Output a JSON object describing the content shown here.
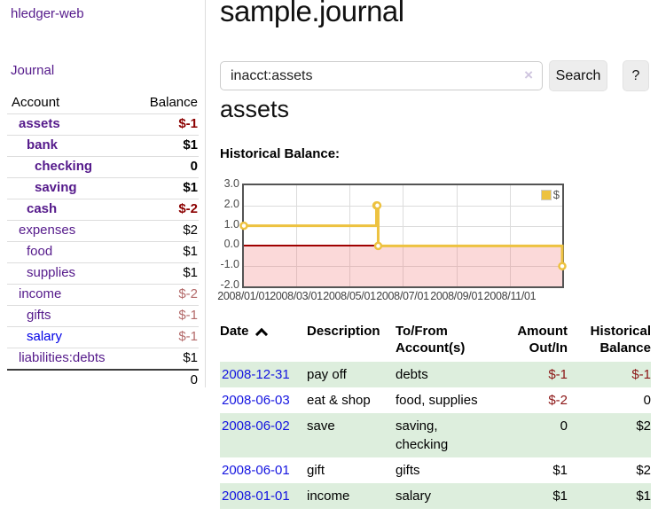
{
  "app": {
    "brand": "hledger-web"
  },
  "sidebar": {
    "journal_label": "Journal",
    "accounts_table": {
      "headers": {
        "account": "Account",
        "balance": "Balance"
      },
      "rows": [
        {
          "account": "assets",
          "indent": 1,
          "bold": true,
          "balance": "$-1",
          "balance_style": "neg-strong",
          "link_style": "visited"
        },
        {
          "account": "bank",
          "indent": 2,
          "bold": true,
          "balance": "$1",
          "balance_style": "pos",
          "link_style": "visited"
        },
        {
          "account": "checking",
          "indent": 3,
          "bold": true,
          "balance": "0",
          "balance_style": "pos",
          "link_style": "visited"
        },
        {
          "account": "saving",
          "indent": 3,
          "bold": true,
          "balance": "$1",
          "balance_style": "pos",
          "link_style": "visited"
        },
        {
          "account": "cash",
          "indent": 2,
          "bold": true,
          "balance": "$-2",
          "balance_style": "neg-strong",
          "link_style": "visited"
        },
        {
          "account": "expenses",
          "indent": 1,
          "bold": false,
          "balance": "$2",
          "balance_style": "pos",
          "link_style": "visited"
        },
        {
          "account": "food",
          "indent": 2,
          "bold": false,
          "balance": "$1",
          "balance_style": "pos",
          "link_style": "visited"
        },
        {
          "account": "supplies",
          "indent": 2,
          "bold": false,
          "balance": "$1",
          "balance_style": "pos",
          "link_style": "visited"
        },
        {
          "account": "income",
          "indent": 1,
          "bold": false,
          "balance": "$-2",
          "balance_style": "neg-soft",
          "link_style": "visited"
        },
        {
          "account": "gifts",
          "indent": 2,
          "bold": false,
          "balance": "$-1",
          "balance_style": "neg-soft",
          "link_style": "visited"
        },
        {
          "account": "salary",
          "indent": 2,
          "bold": false,
          "balance": "$-1",
          "balance_style": "neg-soft",
          "link_style": "unvisited"
        },
        {
          "account": "liabilities:debts",
          "indent": 1,
          "bold": false,
          "balance": "$1",
          "balance_style": "pos",
          "link_style": "visited"
        }
      ],
      "total": "0"
    }
  },
  "header": {
    "title": "sample.journal"
  },
  "search": {
    "value": "inacct:assets",
    "clear_icon": "×",
    "button_label": "Search",
    "help_label": "?"
  },
  "account_page": {
    "title": "assets",
    "chart_label": "Historical Balance:"
  },
  "chart_data": {
    "type": "line",
    "title": "Historical Balance",
    "step": true,
    "legend": [
      {
        "label": "$",
        "color": "#EDC240"
      }
    ],
    "legend_position": "top-right",
    "grid": true,
    "x_range": [
      "2008-01-01",
      "2008-12-31"
    ],
    "ylim": [
      -2.0,
      3.0
    ],
    "y_ticks": [
      3.0,
      2.0,
      1.0,
      0.0,
      -1.0,
      -2.0
    ],
    "x_ticks": [
      "2008/01/01",
      "2008/03/01",
      "2008/05/01",
      "2008/07/01",
      "2008/09/01",
      "2008/11/01"
    ],
    "points": [
      [
        "2008-01-01",
        1
      ],
      [
        "2008-06-01",
        2
      ],
      [
        "2008-06-02",
        2
      ],
      [
        "2008-06-03",
        0
      ],
      [
        "2008-12-31",
        -1
      ]
    ],
    "line_color": "#EDC240",
    "marker_fill": "#ffffff",
    "zero_line_color": "#a00000",
    "negative_region_fill": "#f9d7d7"
  },
  "register": {
    "headers": [
      {
        "label": "Date",
        "sort": "asc",
        "align": "left"
      },
      {
        "label": "Description",
        "align": "left"
      },
      {
        "label": "To/From\nAccount(s)",
        "align": "left"
      },
      {
        "label": "Amount\nOut/In",
        "align": "right"
      },
      {
        "label": "Historical\nBalance",
        "align": "right"
      }
    ],
    "rows": [
      {
        "date": "2008-12-31",
        "description": "pay off",
        "accounts": "debts",
        "amount": "$-1",
        "amount_negative": true,
        "balance": "$-1",
        "balance_negative": true
      },
      {
        "date": "2008-06-03",
        "description": "eat & shop",
        "accounts": "food, supplies",
        "amount": "$-2",
        "amount_negative": true,
        "balance": "0",
        "balance_negative": false
      },
      {
        "date": "2008-06-02",
        "description": "save",
        "accounts": "saving,\nchecking",
        "amount": "0",
        "amount_negative": false,
        "balance": "$2",
        "balance_negative": false
      },
      {
        "date": "2008-06-01",
        "description": "gift",
        "accounts": "gifts",
        "amount": "$1",
        "amount_negative": false,
        "balance": "$2",
        "balance_negative": false
      },
      {
        "date": "2008-01-01",
        "description": "income",
        "accounts": "salary",
        "amount": "$1",
        "amount_negative": false,
        "balance": "$1",
        "balance_negative": false
      }
    ]
  },
  "colors": {
    "accent_purple": "#551a8b",
    "link_blue": "#0000e6",
    "negative_strong": "#8b0000",
    "negative_soft": "#b36a6a",
    "row_stripe_green": "#ddeedd",
    "chart_line_gold": "#EDC240",
    "chart_border": "#545454"
  }
}
